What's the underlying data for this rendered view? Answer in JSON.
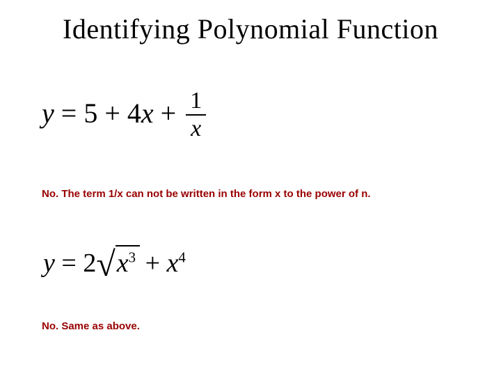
{
  "title": "Identifying Polynomial Function",
  "equations": {
    "eq1": {
      "lhs_var": "y",
      "equals": " = ",
      "term1": "5",
      "plus1": " + ",
      "term2_coef": "4",
      "term2_var": "x",
      "plus2": " + ",
      "frac_num": "1",
      "frac_den": "x"
    },
    "eq2": {
      "lhs_var": "y",
      "equals": " = ",
      "coef": "2",
      "sqrt_symbol": "√",
      "rad_var": "x",
      "rad_exp": "3",
      "plus": " + ",
      "t2_var": "x",
      "t2_exp": "4"
    }
  },
  "answers": {
    "a1": "No. The term 1/x can not be written in the form x to the power of n.",
    "a2": "No. Same as above."
  },
  "colors": {
    "text": "#000000",
    "answer": "#990000",
    "background": "#ffffff"
  },
  "fontsizes": {
    "title": 40,
    "equation": 40,
    "answer": 15
  }
}
